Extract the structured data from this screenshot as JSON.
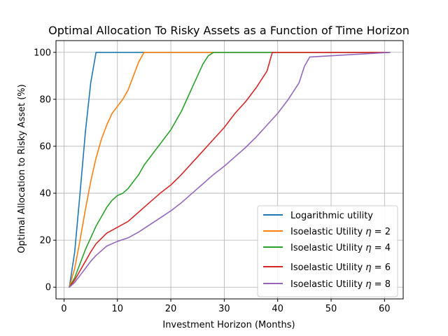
{
  "chart_data": {
    "type": "line",
    "title": "Optimal Allocation To Risky Assets as a Function of Time Horizon",
    "xlabel": "Investment Horizon (Months)",
    "ylabel": "Optimal Allocation to Risky Asset (%)",
    "xlim": [
      -1.5,
      63.5
    ],
    "ylim": [
      -5,
      105
    ],
    "xticks": [
      0,
      10,
      20,
      30,
      40,
      50,
      60
    ],
    "yticks": [
      0,
      20,
      40,
      60,
      80,
      100
    ],
    "grid": true,
    "legend_position": "lower-right",
    "series": [
      {
        "name": "Logarithmic utility",
        "color": "#1f77b4",
        "x": [
          1,
          2,
          3,
          4,
          5,
          6,
          7,
          61
        ],
        "y": [
          0,
          15,
          40,
          66,
          87,
          100,
          100,
          100
        ]
      },
      {
        "name": "Isoelastic Utility η = 2",
        "name_prefix": "Isoelastic Utility ",
        "symbol": "η",
        "value_text": " = 2",
        "color": "#ff7f0e",
        "x": [
          1,
          2,
          3,
          4,
          5,
          6,
          7,
          8,
          9,
          10,
          11,
          12,
          13,
          14,
          15,
          16,
          61
        ],
        "y": [
          0,
          8,
          20,
          33,
          45,
          55,
          63,
          69,
          74,
          77,
          80,
          84,
          90,
          96,
          100,
          100,
          100
        ]
      },
      {
        "name": "Isoelastic Utility η = 4",
        "name_prefix": "Isoelastic Utility ",
        "symbol": "η",
        "value_text": " = 4",
        "color": "#2ca02c",
        "x": [
          1,
          2,
          3,
          4,
          5,
          6,
          7,
          8,
          9,
          10,
          11,
          12,
          13,
          14,
          15,
          16,
          17,
          18,
          19,
          20,
          21,
          22,
          23,
          24,
          25,
          26,
          27,
          28,
          29,
          61
        ],
        "y": [
          0,
          4,
          10,
          16,
          21,
          26,
          30,
          34,
          37,
          39,
          40,
          42,
          45,
          48,
          52,
          55,
          58,
          61,
          64,
          67,
          71,
          75,
          80,
          85,
          90,
          95,
          98.5,
          100,
          100,
          100
        ]
      },
      {
        "name": "Isoelastic Utility η = 6",
        "name_prefix": "Isoelastic Utility ",
        "symbol": "η",
        "value_text": " = 6",
        "color": "#d62728",
        "x": [
          1,
          2,
          3,
          4,
          5,
          6,
          8,
          10,
          12,
          14,
          16,
          18,
          20,
          22,
          24,
          26,
          28,
          30,
          32,
          34,
          36,
          38,
          39,
          61
        ],
        "y": [
          0,
          3,
          7,
          11,
          15,
          18.5,
          23,
          25.5,
          28,
          32,
          36,
          40,
          43.5,
          48,
          53,
          58,
          63,
          68,
          74,
          79,
          85,
          92,
          100,
          100
        ]
      },
      {
        "name": "Isoelastic Utility η = 8",
        "name_prefix": "Isoelastic Utility ",
        "symbol": "η",
        "value_text": " = 8",
        "color": "#9467bd",
        "x": [
          1,
          2,
          3,
          4,
          5,
          6,
          8,
          10,
          12,
          14,
          16,
          18,
          20,
          22,
          24,
          26,
          28,
          30,
          32,
          34,
          36,
          38,
          40,
          42,
          44,
          45,
          46,
          61
        ],
        "y": [
          0,
          2,
          5,
          8,
          11,
          13.5,
          17.5,
          19.5,
          21,
          23.5,
          26.5,
          29.5,
          32.5,
          36,
          40,
          44,
          48,
          51.5,
          55.5,
          59.5,
          64,
          69,
          74,
          80,
          87,
          94,
          98,
          100
        ]
      }
    ]
  }
}
